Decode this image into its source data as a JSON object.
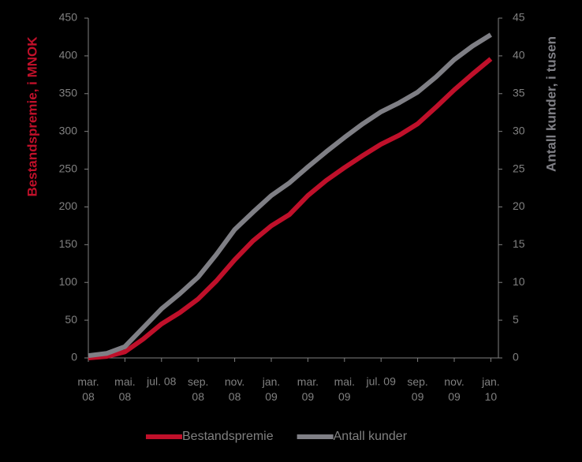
{
  "chart_data": {
    "type": "line",
    "categories": [
      "mar.\n08",
      null,
      "mai.\n08",
      null,
      "jul. 08",
      null,
      "sep.\n08",
      null,
      "nov.\n08",
      null,
      "jan.\n09",
      null,
      "mar.\n09",
      null,
      "mai.\n09",
      null,
      "jul. 09",
      null,
      "sep.\n09",
      null,
      "nov.\n09",
      null,
      "jan.\n10"
    ],
    "ylabel": "Bestandspremie, i MNOK",
    "y2label": "Antall kunder, i tusen",
    "ylim": [
      0,
      450
    ],
    "yticks": [
      0,
      50,
      100,
      150,
      200,
      250,
      300,
      350,
      400,
      450
    ],
    "y2lim": [
      0,
      45
    ],
    "y2ticks": [
      0,
      5,
      10,
      15,
      20,
      25,
      30,
      35,
      40,
      45
    ],
    "legend": "bottom",
    "series": [
      {
        "name": "Bestandspremie",
        "color": "#c0102a",
        "values": [
          0,
          2,
          8,
          25,
          45,
          60,
          78,
          102,
          130,
          155,
          175,
          190,
          215,
          235,
          252,
          268,
          283,
          295,
          310,
          332,
          355,
          376,
          396
        ]
      },
      {
        "name": "Antall kunder",
        "color": "#7f7f85",
        "axis": "y2",
        "values": [
          0.3,
          0.6,
          1.5,
          4,
          6.5,
          8.5,
          10.7,
          13.7,
          17,
          19.3,
          21.5,
          23.2,
          25.3,
          27.3,
          29.2,
          31,
          32.6,
          33.8,
          35.2,
          37.2,
          39.5,
          41.3,
          42.8
        ]
      }
    ]
  }
}
